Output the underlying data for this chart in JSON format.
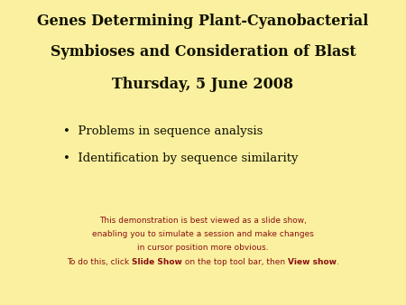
{
  "background_color": "#FAF0A0",
  "title_line1": "Genes Determining Plant-Cyanobacterial",
  "title_line2": "Symbioses and Consideration of Blast",
  "subtitle": "Thursday, 5 June 2008",
  "bullets": [
    "Problems in sequence analysis",
    "Identification by sequence similarity"
  ],
  "footer_line1": "This demonstration is best viewed as a slide show,",
  "footer_line2": "enabling you to simulate a session and make changes",
  "footer_line3": "in cursor position more obvious.",
  "footer_pre": "To do this, click ",
  "footer_bold1": "Slide Show",
  "footer_mid": " on the top tool bar, then ",
  "footer_bold2": "View show",
  "footer_post": ".",
  "dark_red": "#8B1010",
  "title_color": "#111100",
  "title_fontsize": 11.5,
  "subtitle_fontsize": 11.5,
  "bullet_fontsize": 9.5,
  "footer_fontsize": 6.5
}
